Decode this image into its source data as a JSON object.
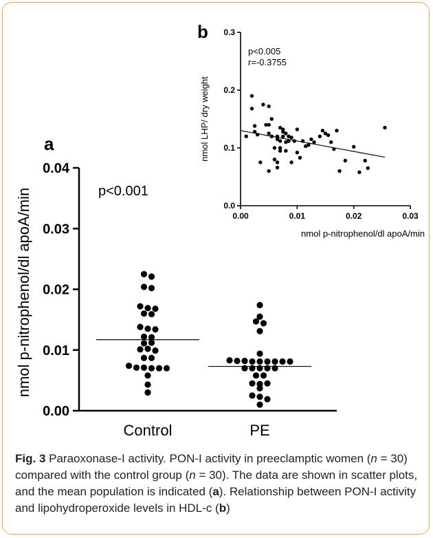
{
  "chart_data": [
    {
      "type": "scatter",
      "panel_label": "a",
      "categories": [
        "Control",
        "PE"
      ],
      "ylabel": "nmol p-nitrophenol/dl apoA/min",
      "ylim": [
        0,
        0.04
      ],
      "yticks": [
        "0.00",
        "0.01",
        "0.02",
        "0.03",
        "0.04"
      ],
      "annotation": "p<0.001",
      "means": [
        0.0117,
        0.0073
      ],
      "series": [
        {
          "category": "Control",
          "values": [
            0.0225,
            0.0221,
            0.0204,
            0.0202,
            0.0172,
            0.0169,
            0.0168,
            0.016,
            0.0159,
            0.0138,
            0.0135,
            0.0134,
            0.0122,
            0.0121,
            0.0111,
            0.0112,
            0.0101,
            0.0102,
            0.0099,
            0.0087,
            0.0087,
            0.0074,
            0.0071,
            0.0071,
            0.007,
            0.007,
            0.007,
            0.0058,
            0.0043,
            0.003
          ]
        },
        {
          "category": "PE",
          "values": [
            0.0174,
            0.0155,
            0.0147,
            0.0144,
            0.0131,
            0.0094,
            0.0083,
            0.0082,
            0.0082,
            0.0081,
            0.0081,
            0.0081,
            0.0081,
            0.0081,
            0.0081,
            0.007,
            0.007,
            0.007,
            0.007,
            0.007,
            0.0058,
            0.0058,
            0.0045,
            0.0044,
            0.0045,
            0.0037,
            0.0025,
            0.0023,
            0.0019,
            0.001
          ]
        }
      ]
    },
    {
      "type": "scatter",
      "panel_label": "b",
      "xlabel": "nmol p-nitrophenol/dl apoA/min",
      "ylabel": "nmol LHP/ dry weight",
      "xlim": [
        0,
        0.03
      ],
      "ylim": [
        0,
        0.3
      ],
      "xticks": [
        "0.00",
        "0.01",
        "0.02",
        "0.03"
      ],
      "yticks": [
        "0.0",
        "0.1",
        "0.2",
        "0.3"
      ],
      "annotations": [
        "p<0.005",
        "r=-0.3755"
      ],
      "regression": {
        "x": [
          0.0,
          0.0255
        ],
        "y": [
          0.13,
          0.084
        ]
      },
      "points": [
        [
          0.001,
          0.12
        ],
        [
          0.002,
          0.19
        ],
        [
          0.002,
          0.168
        ],
        [
          0.0025,
          0.138
        ],
        [
          0.0025,
          0.128
        ],
        [
          0.003,
          0.123
        ],
        [
          0.0035,
          0.075
        ],
        [
          0.004,
          0.175
        ],
        [
          0.0045,
          0.14
        ],
        [
          0.005,
          0.172
        ],
        [
          0.005,
          0.14
        ],
        [
          0.005,
          0.125
        ],
        [
          0.005,
          0.06
        ],
        [
          0.0055,
          0.15
        ],
        [
          0.0055,
          0.12
        ],
        [
          0.006,
          0.1
        ],
        [
          0.006,
          0.08
        ],
        [
          0.0065,
          0.12
        ],
        [
          0.0065,
          0.115
        ],
        [
          0.0065,
          0.075
        ],
        [
          0.0065,
          0.066
        ],
        [
          0.007,
          0.135
        ],
        [
          0.007,
          0.112
        ],
        [
          0.007,
          0.1
        ],
        [
          0.007,
          0.095
        ],
        [
          0.0075,
          0.132
        ],
        [
          0.0075,
          0.128
        ],
        [
          0.0075,
          0.12
        ],
        [
          0.008,
          0.125
        ],
        [
          0.008,
          0.11
        ],
        [
          0.008,
          0.095
        ],
        [
          0.0085,
          0.12
        ],
        [
          0.0085,
          0.112
        ],
        [
          0.009,
          0.118
        ],
        [
          0.009,
          0.075
        ],
        [
          0.0095,
          0.112
        ],
        [
          0.01,
          0.132
        ],
        [
          0.01,
          0.092
        ],
        [
          0.0105,
          0.083
        ],
        [
          0.011,
          0.112
        ],
        [
          0.0115,
          0.103
        ],
        [
          0.012,
          0.105
        ],
        [
          0.0125,
          0.115
        ],
        [
          0.013,
          0.11
        ],
        [
          0.014,
          0.12
        ],
        [
          0.0145,
          0.13
        ],
        [
          0.015,
          0.125
        ],
        [
          0.0155,
          0.122
        ],
        [
          0.016,
          0.11
        ],
        [
          0.0165,
          0.098
        ],
        [
          0.017,
          0.13
        ],
        [
          0.0175,
          0.06
        ],
        [
          0.0185,
          0.078
        ],
        [
          0.02,
          0.102
        ],
        [
          0.021,
          0.058
        ],
        [
          0.022,
          0.078
        ],
        [
          0.0225,
          0.065
        ],
        [
          0.0255,
          0.135
        ]
      ]
    }
  ],
  "caption": {
    "fig_label": "Fig. 3",
    "text_1": " Paraoxonase-I activity. PON-I activity in preeclamptic women (",
    "n_label": "n",
    "text_2": " = 30) compared with the control group (",
    "text_3": " = 30). The data are shown in scatter plots, and the mean population is indicated (",
    "ref_a": "a",
    "text_4": "). Relationship between PON-I activity and lipohydroperoxide levels in HDL-c (",
    "ref_b": "b",
    "text_5": ")"
  }
}
